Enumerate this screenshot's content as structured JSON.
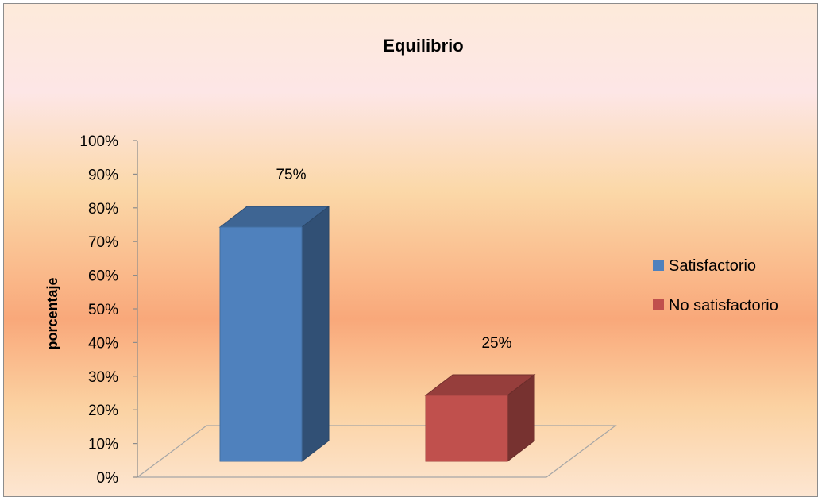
{
  "chart_data": {
    "type": "bar",
    "title": "Equilibrio",
    "ylabel": "porcentaje",
    "xlabel": "",
    "categories": [
      "Satisfactorio",
      "No satisfactorio"
    ],
    "values": [
      75,
      25
    ],
    "data_labels": [
      "75%",
      "25%"
    ],
    "colors": [
      "#4f81bd",
      "#c0504d"
    ],
    "ylim": [
      0,
      100
    ],
    "y_ticks": [
      "0%",
      "10%",
      "20%",
      "30%",
      "40%",
      "50%",
      "60%",
      "70%",
      "80%",
      "90%",
      "100%"
    ],
    "legend": {
      "position": "right",
      "entries": [
        "Satisfactorio",
        "No satisfactorio"
      ]
    },
    "style": "3d-column",
    "grid": false
  }
}
